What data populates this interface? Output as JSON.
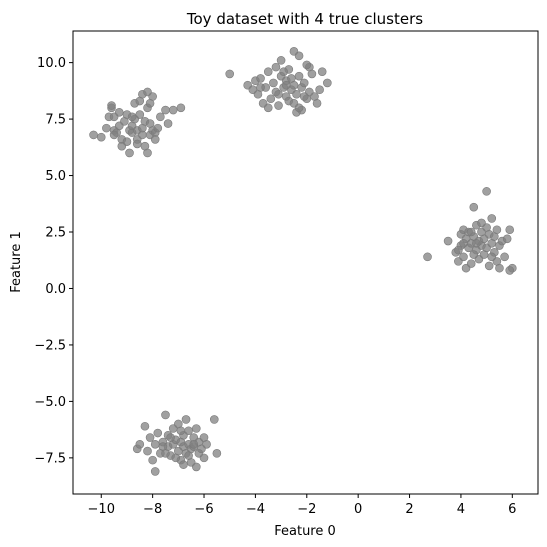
{
  "chart_data": {
    "type": "scatter",
    "title": "Toy dataset with 4 true clusters",
    "xlabel": "Feature 0",
    "ylabel": "Feature 1",
    "xlim": [
      -11.1,
      7.0
    ],
    "ylim": [
      -9.1,
      11.4
    ],
    "x_ticks": [
      -10,
      -8,
      -6,
      -4,
      -2,
      0,
      2,
      4,
      6
    ],
    "x_tick_labels": [
      "−10",
      "−8",
      "−6",
      "−4",
      "−2",
      "0",
      "2",
      "4",
      "6"
    ],
    "y_ticks": [
      -7.5,
      -5.0,
      -2.5,
      0.0,
      2.5,
      5.0,
      7.5,
      10.0
    ],
    "y_tick_labels": [
      "−7.5",
      "−5.0",
      "−2.5",
      "0.0",
      "2.5",
      "5.0",
      "7.5",
      "10.0"
    ],
    "grid": false,
    "point_color": "#808080",
    "point_opacity": 0.75,
    "series": [
      {
        "points": [
          [
            -10.3,
            6.8
          ],
          [
            -10.0,
            6.7
          ],
          [
            -9.8,
            7.1
          ],
          [
            -9.7,
            7.6
          ],
          [
            -9.6,
            8.0
          ],
          [
            -9.6,
            8.1
          ],
          [
            -9.5,
            7.6
          ],
          [
            -9.5,
            7.0
          ],
          [
            -9.4,
            6.9
          ],
          [
            -9.3,
            7.2
          ],
          [
            -9.2,
            6.6
          ],
          [
            -9.2,
            6.3
          ],
          [
            -9.1,
            7.4
          ],
          [
            -9.0,
            7.7
          ],
          [
            -9.0,
            6.5
          ],
          [
            -8.9,
            7.0
          ],
          [
            -8.9,
            6.0
          ],
          [
            -8.8,
            6.9
          ],
          [
            -8.8,
            7.2
          ],
          [
            -8.7,
            7.5
          ],
          [
            -8.7,
            8.2
          ],
          [
            -8.6,
            6.6
          ],
          [
            -8.6,
            7.0
          ],
          [
            -8.5,
            8.3
          ],
          [
            -8.5,
            7.7
          ],
          [
            -8.4,
            8.6
          ],
          [
            -8.4,
            6.8
          ],
          [
            -8.4,
            7.1
          ],
          [
            -8.3,
            6.3
          ],
          [
            -8.3,
            7.4
          ],
          [
            -8.2,
            8.0
          ],
          [
            -8.2,
            8.7
          ],
          [
            -8.2,
            6.0
          ],
          [
            -8.1,
            6.8
          ],
          [
            -8.1,
            7.3
          ],
          [
            -8.0,
            8.5
          ],
          [
            -8.0,
            7.0
          ],
          [
            -7.9,
            6.9
          ],
          [
            -7.8,
            7.1
          ],
          [
            -7.7,
            7.6
          ],
          [
            -7.5,
            7.9
          ],
          [
            -7.4,
            7.3
          ],
          [
            -7.9,
            6.6
          ],
          [
            -8.6,
            6.4
          ],
          [
            -9.3,
            7.8
          ],
          [
            -8.8,
            7.6
          ],
          [
            -7.2,
            7.9
          ],
          [
            -6.9,
            8.0
          ],
          [
            -8.1,
            8.2
          ],
          [
            -9.5,
            6.8
          ]
        ]
      },
      {
        "points": [
          [
            -5.0,
            9.5
          ],
          [
            -4.3,
            9.0
          ],
          [
            -4.1,
            8.8
          ],
          [
            -4.0,
            9.2
          ],
          [
            -3.9,
            8.6
          ],
          [
            -3.8,
            9.3
          ],
          [
            -3.7,
            8.2
          ],
          [
            -3.6,
            8.9
          ],
          [
            -3.5,
            9.6
          ],
          [
            -3.4,
            8.4
          ],
          [
            -3.3,
            9.1
          ],
          [
            -3.2,
            9.8
          ],
          [
            -3.2,
            8.7
          ],
          [
            -3.1,
            8.1
          ],
          [
            -3.0,
            9.4
          ],
          [
            -3.0,
            10.1
          ],
          [
            -2.9,
            8.9
          ],
          [
            -2.8,
            8.5
          ],
          [
            -2.8,
            9.2
          ],
          [
            -2.7,
            9.7
          ],
          [
            -2.7,
            8.3
          ],
          [
            -2.6,
            8.8
          ],
          [
            -2.5,
            10.5
          ],
          [
            -2.5,
            9.0
          ],
          [
            -2.4,
            7.8
          ],
          [
            -2.4,
            8.6
          ],
          [
            -2.3,
            9.4
          ],
          [
            -2.3,
            10.3
          ],
          [
            -2.2,
            7.9
          ],
          [
            -2.2,
            8.9
          ],
          [
            -2.1,
            9.1
          ],
          [
            -2.0,
            8.4
          ],
          [
            -1.9,
            9.8
          ],
          [
            -1.9,
            8.7
          ],
          [
            -1.8,
            9.5
          ],
          [
            -1.6,
            8.2
          ],
          [
            -1.5,
            8.8
          ],
          [
            -1.4,
            9.6
          ],
          [
            -1.2,
            9.1
          ],
          [
            -2.6,
            9.3
          ],
          [
            -2.9,
            9.6
          ],
          [
            -3.5,
            8.0
          ],
          [
            -2.0,
            9.9
          ],
          [
            -1.7,
            8.5
          ],
          [
            -2.5,
            8.2
          ],
          [
            -3.1,
            8.6
          ],
          [
            -3.8,
            8.9
          ],
          [
            -2.3,
            8.0
          ],
          [
            -2.8,
            9.0
          ],
          [
            -2.1,
            8.5
          ]
        ]
      },
      {
        "points": [
          [
            2.7,
            1.4
          ],
          [
            3.5,
            2.1
          ],
          [
            3.8,
            1.6
          ],
          [
            3.9,
            1.2
          ],
          [
            4.0,
            2.4
          ],
          [
            4.0,
            1.9
          ],
          [
            4.1,
            2.6
          ],
          [
            4.1,
            1.4
          ],
          [
            4.2,
            2.2
          ],
          [
            4.2,
            0.9
          ],
          [
            4.3,
            1.8
          ],
          [
            4.3,
            2.5
          ],
          [
            4.4,
            2.0
          ],
          [
            4.4,
            1.1
          ],
          [
            4.5,
            2.3
          ],
          [
            4.5,
            3.6
          ],
          [
            4.6,
            1.7
          ],
          [
            4.6,
            2.8
          ],
          [
            4.7,
            2.1
          ],
          [
            4.7,
            1.3
          ],
          [
            4.8,
            2.5
          ],
          [
            4.8,
            1.9
          ],
          [
            4.9,
            2.2
          ],
          [
            4.9,
            1.5
          ],
          [
            5.0,
            4.3
          ],
          [
            5.0,
            2.7
          ],
          [
            5.0,
            1.8
          ],
          [
            5.1,
            1.0
          ],
          [
            5.1,
            2.4
          ],
          [
            5.2,
            3.1
          ],
          [
            5.2,
            2.0
          ],
          [
            5.3,
            1.6
          ],
          [
            5.3,
            2.3
          ],
          [
            5.4,
            2.6
          ],
          [
            5.4,
            1.2
          ],
          [
            5.5,
            1.9
          ],
          [
            5.5,
            0.9
          ],
          [
            5.6,
            2.1
          ],
          [
            5.7,
            1.4
          ],
          [
            5.8,
            2.2
          ],
          [
            5.9,
            2.6
          ],
          [
            6.0,
            0.9
          ],
          [
            5.9,
            0.8
          ],
          [
            4.5,
            1.5
          ],
          [
            4.1,
            2.0
          ],
          [
            4.8,
            2.9
          ],
          [
            5.2,
            1.4
          ],
          [
            4.4,
            2.5
          ],
          [
            4.6,
            2.0
          ],
          [
            3.9,
            1.7
          ]
        ]
      },
      {
        "points": [
          [
            -8.6,
            -7.1
          ],
          [
            -8.5,
            -6.9
          ],
          [
            -8.3,
            -6.1
          ],
          [
            -8.2,
            -7.2
          ],
          [
            -8.1,
            -6.6
          ],
          [
            -8.0,
            -7.6
          ],
          [
            -7.9,
            -6.9
          ],
          [
            -7.9,
            -8.1
          ],
          [
            -7.8,
            -6.4
          ],
          [
            -7.7,
            -7.3
          ],
          [
            -7.6,
            -6.8
          ],
          [
            -7.5,
            -5.6
          ],
          [
            -7.4,
            -7.0
          ],
          [
            -7.4,
            -6.5
          ],
          [
            -7.3,
            -7.4
          ],
          [
            -7.2,
            -6.2
          ],
          [
            -7.2,
            -6.9
          ],
          [
            -7.1,
            -6.7
          ],
          [
            -7.0,
            -7.2
          ],
          [
            -7.0,
            -6.0
          ],
          [
            -6.9,
            -6.8
          ],
          [
            -6.9,
            -7.6
          ],
          [
            -6.8,
            -6.5
          ],
          [
            -6.8,
            -7.0
          ],
          [
            -6.7,
            -5.8
          ],
          [
            -6.7,
            -7.3
          ],
          [
            -6.6,
            -6.9
          ],
          [
            -6.6,
            -6.3
          ],
          [
            -6.5,
            -7.1
          ],
          [
            -6.5,
            -7.7
          ],
          [
            -6.4,
            -6.6
          ],
          [
            -6.4,
            -7.0
          ],
          [
            -6.3,
            -6.2
          ],
          [
            -6.3,
            -7.9
          ],
          [
            -6.2,
            -6.8
          ],
          [
            -6.2,
            -7.3
          ],
          [
            -6.1,
            -7.1
          ],
          [
            -6.0,
            -6.6
          ],
          [
            -6.0,
            -7.5
          ],
          [
            -5.9,
            -6.9
          ],
          [
            -5.6,
            -5.8
          ],
          [
            -5.5,
            -7.3
          ],
          [
            -7.6,
            -7.0
          ],
          [
            -7.1,
            -7.5
          ],
          [
            -6.9,
            -6.3
          ],
          [
            -6.6,
            -7.4
          ],
          [
            -7.3,
            -6.6
          ],
          [
            -6.8,
            -7.8
          ],
          [
            -7.5,
            -7.3
          ],
          [
            -6.4,
            -6.9
          ]
        ]
      }
    ]
  }
}
